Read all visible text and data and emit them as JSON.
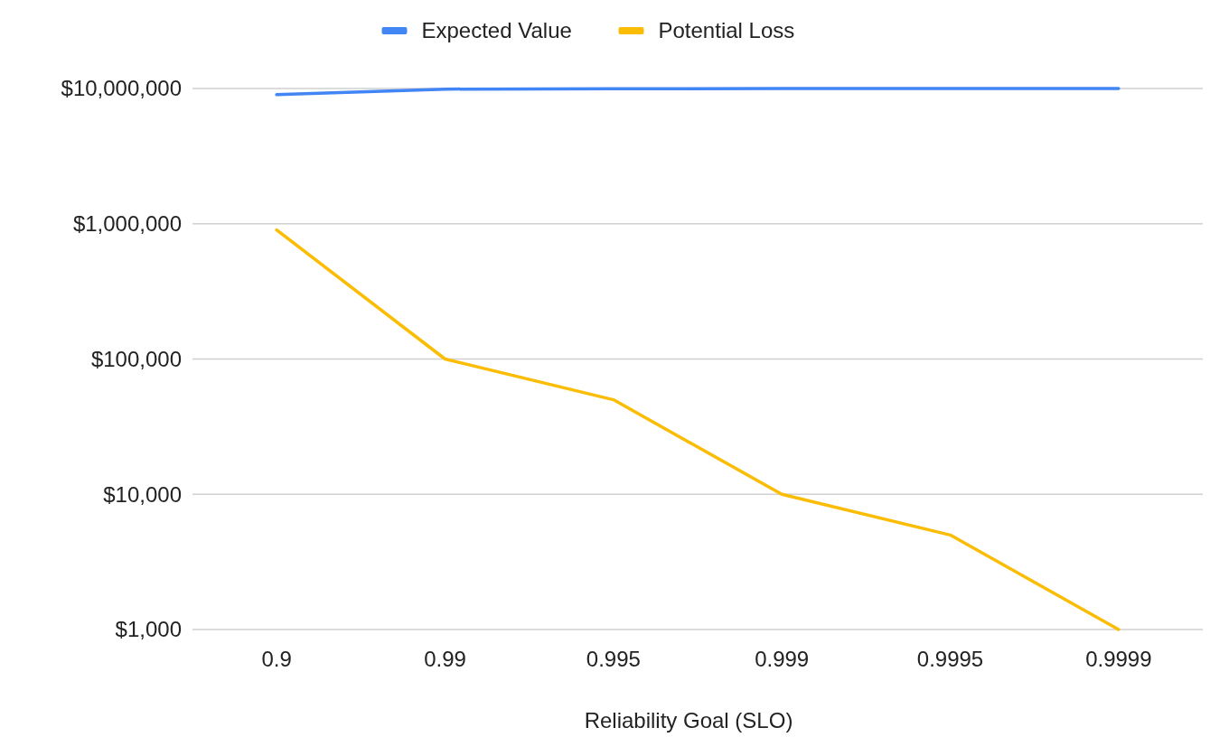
{
  "chart_data": {
    "type": "line",
    "xlabel": "Reliability Goal (SLO)",
    "categories": [
      "0.9",
      "0.99",
      "0.995",
      "0.999",
      "0.9995",
      "0.9999"
    ],
    "series": [
      {
        "name": "Expected Value",
        "color": "#4285f4",
        "values": [
          9000000,
          9900000,
          9950000,
          9990000,
          9995000,
          9999000
        ]
      },
      {
        "name": "Potential Loss",
        "color": "#fbbc04",
        "values": [
          900000,
          100000,
          50000,
          10000,
          5000,
          1000
        ]
      }
    ],
    "log": true,
    "ylim": [
      1000,
      10000000
    ],
    "yticks": [
      {
        "value": 1000,
        "label": "$1,000"
      },
      {
        "value": 10000,
        "label": "$10,000"
      },
      {
        "value": 100000,
        "label": "$100,000"
      },
      {
        "value": 1000000,
        "label": "$1,000,000"
      },
      {
        "value": 10000000,
        "label": "$10,000,000"
      }
    ],
    "grid": "y",
    "legend": "top",
    "marker": "none",
    "line_style": "solid"
  }
}
